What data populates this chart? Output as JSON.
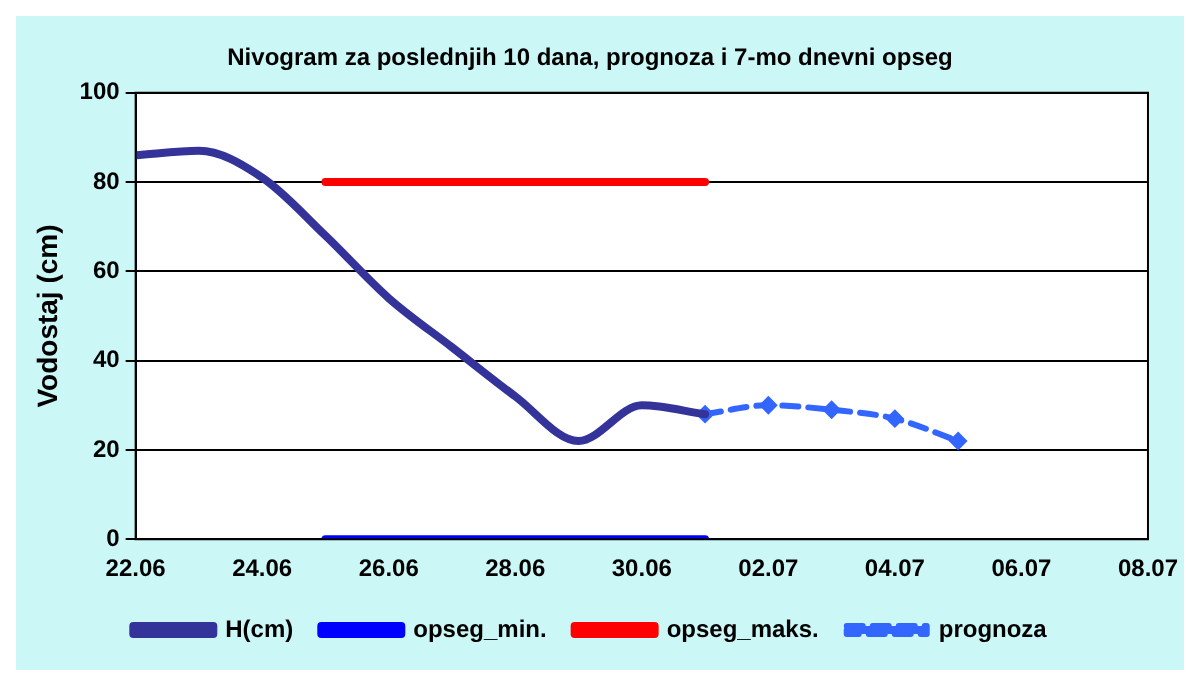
{
  "chart_data": {
    "type": "line",
    "title": "Nivogram za poslednjih 10 dana, prognoza i 7-mo dnevni opseg",
    "ylabel": "Vodostaj (cm)",
    "series": [
      {
        "name": "H(cm)",
        "color": "#333399",
        "x": [
          "--06-22",
          "--06-23",
          "--06-24",
          "--06-25",
          "--06-26",
          "--06-27",
          "--06-28",
          "--06-29",
          "--06-30",
          "--07-01"
        ],
        "values": [
          86,
          87,
          81,
          68,
          54,
          43,
          32,
          22,
          30,
          28
        ],
        "marker": "none",
        "line_style": "solid"
      },
      {
        "name": "opseg_min.",
        "color": "#0000ff",
        "x": [
          "--06-25",
          "--07-01"
        ],
        "values": [
          0,
          0
        ],
        "marker": "none",
        "line_style": "solid"
      },
      {
        "name": "opseg_maks.",
        "color": "#ff0000",
        "x": [
          "--06-25",
          "--07-01"
        ],
        "values": [
          80,
          80
        ],
        "marker": "none",
        "line_style": "solid"
      },
      {
        "name": "prognoza",
        "color": "#3366ff",
        "x": [
          "--07-01",
          "--07-02",
          "--07-03",
          "--07-04",
          "--07-05"
        ],
        "values": [
          28,
          30,
          29,
          27,
          22
        ],
        "marker": "diamond",
        "line_style": "dashed"
      }
    ],
    "xlim": [
      "--06-22",
      "--07-08"
    ],
    "xticks": [
      {
        "value": "--06-22",
        "label": "22.06"
      },
      {
        "value": "--06-24",
        "label": "24.06"
      },
      {
        "value": "--06-26",
        "label": "26.06"
      },
      {
        "value": "--06-28",
        "label": "28.06"
      },
      {
        "value": "--06-30",
        "label": "30.06"
      },
      {
        "value": "--07-02",
        "label": "02.07"
      },
      {
        "value": "--07-04",
        "label": "04.07"
      },
      {
        "value": "--07-06",
        "label": "06.07"
      },
      {
        "value": "--07-08",
        "label": "08.07"
      }
    ],
    "ylim": [
      0,
      100
    ],
    "yticks": [
      0,
      20,
      40,
      60,
      80,
      100
    ],
    "grid": "y",
    "legend": "bottom"
  }
}
